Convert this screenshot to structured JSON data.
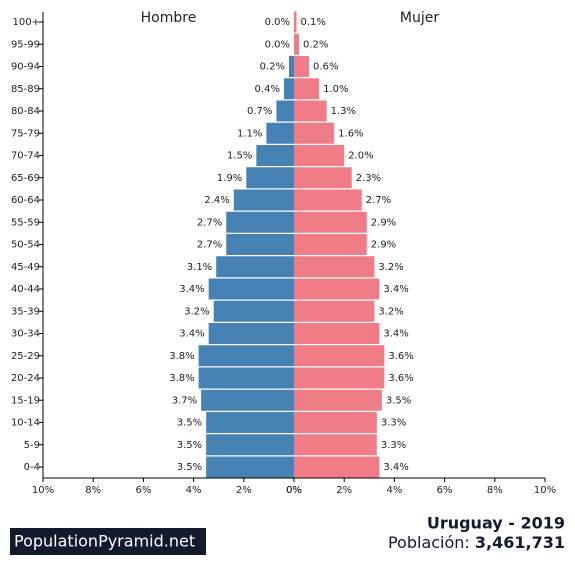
{
  "chart_data": {
    "type": "pyramid",
    "categories": [
      "0-4",
      "5-9",
      "10-14",
      "15-19",
      "20-24",
      "25-29",
      "30-34",
      "35-39",
      "40-44",
      "45-49",
      "50-54",
      "55-59",
      "60-64",
      "65-69",
      "70-74",
      "75-79",
      "80-84",
      "85-89",
      "90-94",
      "95-99",
      "100+"
    ],
    "series": [
      {
        "name": "Hombre",
        "color": "#4682b4",
        "side": "left",
        "values": [
          3.5,
          3.5,
          3.5,
          3.7,
          3.8,
          3.8,
          3.4,
          3.2,
          3.4,
          3.1,
          2.7,
          2.7,
          2.4,
          1.9,
          1.5,
          1.1,
          0.7,
          0.4,
          0.2,
          0.0,
          0.0
        ],
        "value_labels": [
          "3.5%",
          "3.5%",
          "3.5%",
          "3.7%",
          "3.8%",
          "3.8%",
          "3.4%",
          "3.2%",
          "3.4%",
          "3.1%",
          "2.7%",
          "2.7%",
          "2.4%",
          "1.9%",
          "1.5%",
          "1.1%",
          "0.7%",
          "0.4%",
          "0.2%",
          "0.0%",
          "0.0%"
        ]
      },
      {
        "name": "Mujer",
        "color": "#f07c88",
        "side": "right",
        "values": [
          3.4,
          3.3,
          3.3,
          3.5,
          3.6,
          3.6,
          3.4,
          3.2,
          3.4,
          3.2,
          2.9,
          2.9,
          2.7,
          2.3,
          2.0,
          1.6,
          1.3,
          1.0,
          0.6,
          0.2,
          0.1
        ],
        "value_labels": [
          "3.4%",
          "3.3%",
          "3.3%",
          "3.5%",
          "3.6%",
          "3.6%",
          "3.4%",
          "3.2%",
          "3.4%",
          "3.2%",
          "2.9%",
          "2.9%",
          "2.7%",
          "2.3%",
          "2.0%",
          "1.6%",
          "1.3%",
          "1.0%",
          "0.6%",
          "0.2%",
          "0.1%"
        ]
      }
    ],
    "xlim": [
      0,
      10
    ],
    "xticks": [
      {
        "value": 0,
        "label": "0%"
      },
      {
        "value": 2,
        "label": "2%"
      },
      {
        "value": 4,
        "label": "4%"
      },
      {
        "value": 6,
        "label": "6%"
      },
      {
        "value": 8,
        "label": "8%"
      },
      {
        "value": 10,
        "label": "10%"
      }
    ]
  },
  "footer": {
    "brand": "PopulationPyramid.net",
    "country_year": "Uruguay - 2019",
    "population_label": "Población:",
    "population": "3,461,731"
  }
}
